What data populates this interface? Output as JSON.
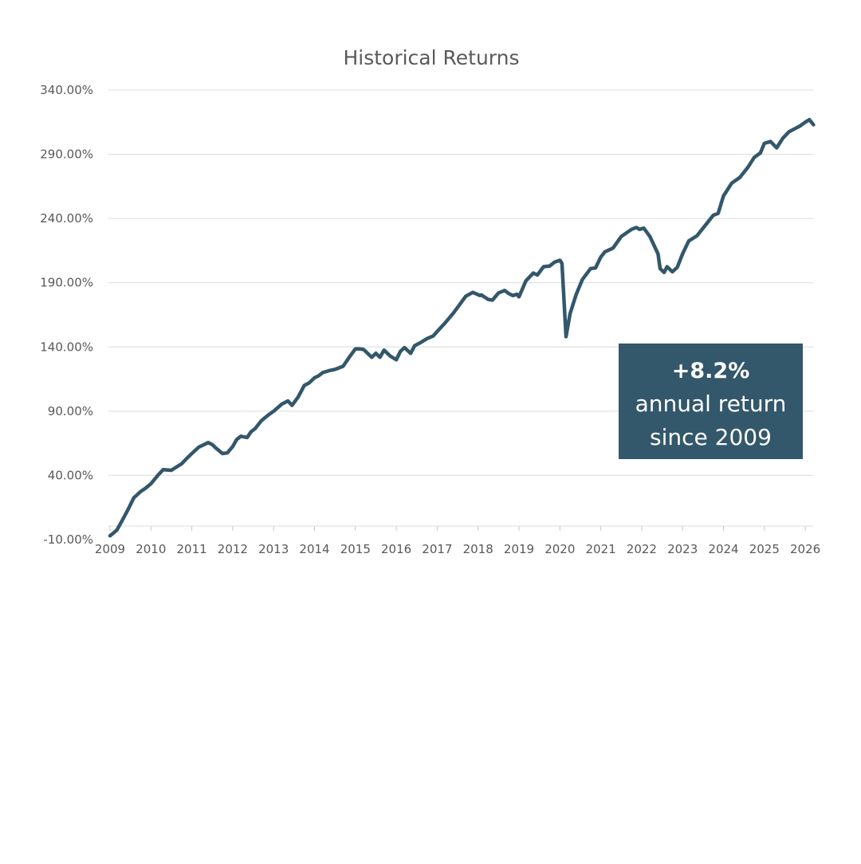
{
  "colors": {
    "series": "#33576b",
    "callout_bg": "#33576b",
    "grid": "#dcdcdc",
    "text": "#595959"
  },
  "chart_data": {
    "type": "line",
    "title": "Historical Returns",
    "xlabel": "",
    "ylabel": "",
    "ylim": [
      -10,
      340
    ],
    "xlim": [
      2009.0,
      2026.25
    ],
    "grid": true,
    "legend": "none",
    "y_ticks": [
      -10,
      40,
      90,
      140,
      190,
      240,
      290,
      340
    ],
    "y_tick_labels": [
      "-10.00%",
      "40.00%",
      "90.00%",
      "140.00%",
      "190.00%",
      "240.00%",
      "290.00%",
      "340.00%"
    ],
    "x_ticks": [
      2009,
      2010,
      2011,
      2012,
      2013,
      2014,
      2015,
      2016,
      2017,
      2018,
      2019,
      2020,
      2021,
      2022,
      2023,
      2024,
      2025,
      2026
    ],
    "x_tick_labels": [
      "2009",
      "2010",
      "2011",
      "2012",
      "2013",
      "2014",
      "2015",
      "2016",
      "2017",
      "2018",
      "2019",
      "2020",
      "2021",
      "2022",
      "2023",
      "2024",
      "2025",
      "2026"
    ],
    "series": [
      {
        "x": [
          2009.0,
          2009.08,
          2009.17,
          2009.3,
          2009.45,
          2009.58,
          2009.75,
          2009.87,
          2010.0,
          2010.17,
          2010.3,
          2010.5,
          2010.75,
          2010.87,
          2011.0,
          2011.17,
          2011.3,
          2011.4,
          2011.5,
          2011.6,
          2011.75,
          2011.87,
          2012.0,
          2012.1,
          2012.2,
          2012.35,
          2012.45,
          2012.55,
          2012.7,
          2012.87,
          2013.0,
          2013.2,
          2013.35,
          2013.45,
          2013.6,
          2013.75,
          2013.87,
          2014.0,
          2014.1,
          2014.2,
          2014.35,
          2014.5,
          2014.7,
          2014.85,
          2015.0,
          2015.1,
          2015.2,
          2015.4,
          2015.5,
          2015.6,
          2015.7,
          2015.85,
          2016.0,
          2016.1,
          2016.2,
          2016.35,
          2016.45,
          2016.6,
          2016.75,
          2016.9,
          2017.0,
          2017.2,
          2017.4,
          2017.55,
          2017.7,
          2017.87,
          2018.05,
          2018.08,
          2018.25,
          2018.35,
          2018.5,
          2018.65,
          2018.75,
          2018.85,
          2018.95,
          2019.0,
          2019.17,
          2019.35,
          2019.45,
          2019.6,
          2019.75,
          2019.87,
          2020.0,
          2020.05,
          2020.15,
          2020.25,
          2020.4,
          2020.55,
          2020.75,
          2020.87,
          2021.0,
          2021.1,
          2021.3,
          2021.5,
          2021.75,
          2021.87,
          2021.95,
          2022.05,
          2022.2,
          2022.4,
          2022.45,
          2022.55,
          2022.62,
          2022.75,
          2022.87,
          2023.0,
          2023.15,
          2023.35,
          2023.6,
          2023.75,
          2023.87,
          2024.0,
          2024.2,
          2024.4,
          2024.6,
          2024.75,
          2024.9,
          2025.0,
          2025.15,
          2025.3,
          2025.45,
          2025.6,
          2025.75,
          2025.87,
          2026.0,
          2026.1,
          2026.2
        ],
        "values": [
          -7.0,
          -5.0,
          -2.5,
          5.0,
          14.0,
          22.5,
          27.5,
          30.0,
          33.5,
          40.0,
          44.5,
          44.0,
          49.0,
          53.0,
          57.0,
          62.0,
          64.0,
          65.5,
          64.0,
          61.0,
          57.0,
          57.5,
          62.5,
          68.0,
          70.5,
          69.5,
          74.0,
          76.5,
          82.5,
          87.0,
          90.0,
          95.5,
          98.0,
          94.5,
          101.0,
          110.0,
          112.0,
          116.0,
          117.5,
          120.0,
          121.5,
          122.5,
          125.0,
          132.0,
          138.5,
          138.5,
          138.0,
          132.0,
          135.0,
          132.0,
          137.5,
          133.0,
          130.0,
          136.5,
          139.5,
          135.0,
          141.0,
          143.5,
          146.5,
          148.5,
          152.0,
          159.0,
          166.5,
          173.0,
          179.5,
          182.5,
          180.0,
          180.5,
          177.0,
          176.5,
          182.0,
          184.0,
          181.5,
          180.0,
          181.0,
          179.0,
          191.5,
          197.5,
          196.0,
          202.5,
          203.0,
          206.0,
          207.5,
          205.0,
          148.0,
          166.0,
          181.0,
          192.5,
          201.0,
          201.5,
          210.0,
          214.0,
          217.0,
          226.0,
          231.5,
          233.0,
          231.5,
          232.5,
          226.0,
          212.5,
          201.0,
          198.0,
          202.5,
          198.5,
          202.0,
          212.5,
          222.5,
          226.5,
          236.5,
          242.5,
          244.0,
          257.5,
          267.5,
          272.0,
          280.0,
          287.5,
          291.0,
          298.5,
          300.0,
          295.0,
          302.5,
          307.5,
          310.0,
          312.0,
          315.0,
          317.0,
          313.0
        ]
      }
    ]
  },
  "callout": {
    "value": "+8.2%",
    "line2": "annual return",
    "line3": "since 2009"
  }
}
